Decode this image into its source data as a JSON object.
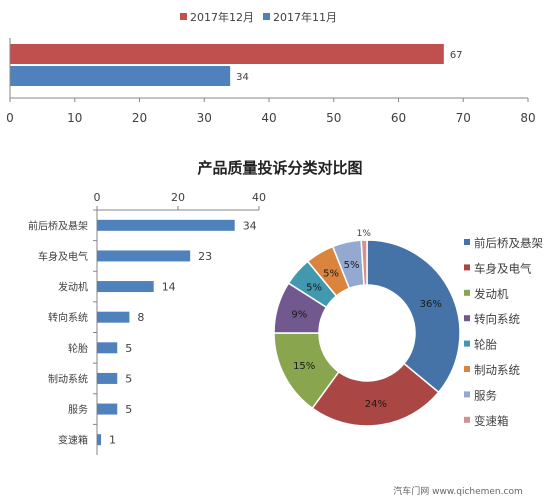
{
  "chart_data": [
    {
      "type": "bar",
      "orientation": "horizontal",
      "categories": [
        ""
      ],
      "series": [
        {
          "name": "2017年12月",
          "values": [
            67
          ],
          "color": "#C0504D"
        },
        {
          "name": "2017年11月",
          "values": [
            34
          ],
          "color": "#4F81BD"
        }
      ],
      "data_labels": [
        "67",
        "34"
      ],
      "xlim": [
        0,
        80
      ],
      "xticks": [
        "0",
        "10",
        "20",
        "30",
        "40",
        "50",
        "60",
        "70",
        "80"
      ],
      "legend_position": "top",
      "grid": false
    },
    {
      "type": "bar",
      "orientation": "horizontal",
      "title": "产品质量投诉分类对比图",
      "categories": [
        "前后桥及悬架",
        "车身及电气",
        "发动机",
        "转向系统",
        "轮胎",
        "制动系统",
        "服务",
        "变速箱"
      ],
      "values": [
        34,
        23,
        14,
        8,
        5,
        5,
        5,
        1
      ],
      "data_labels": [
        "34",
        "23",
        "14",
        "8",
        "5",
        "5",
        "5",
        "1"
      ],
      "xlim": [
        0,
        40
      ],
      "xticks": [
        "0",
        "20",
        "40"
      ],
      "axis_position": "top",
      "color": "#4F81BD",
      "grid": false
    },
    {
      "type": "pie",
      "style": "donut",
      "labels": [
        "前后桥及悬架",
        "车身及电气",
        "发动机",
        "转向系统",
        "轮胎",
        "制动系统",
        "服务",
        "变速箱"
      ],
      "values": [
        36,
        24,
        15,
        9,
        5,
        5,
        5,
        1
      ],
      "slice_labels": [
        "36%",
        "24%",
        "15%",
        "9%",
        "5%",
        "5%",
        "5%",
        "1%"
      ],
      "colors": [
        "#4572A7",
        "#AA4643",
        "#89A54E",
        "#71588F",
        "#4198AF",
        "#DB843D",
        "#93A9CF",
        "#D19392"
      ],
      "legend_position": "right"
    }
  ],
  "watermark": "汽车门网 www.qichemen.com"
}
